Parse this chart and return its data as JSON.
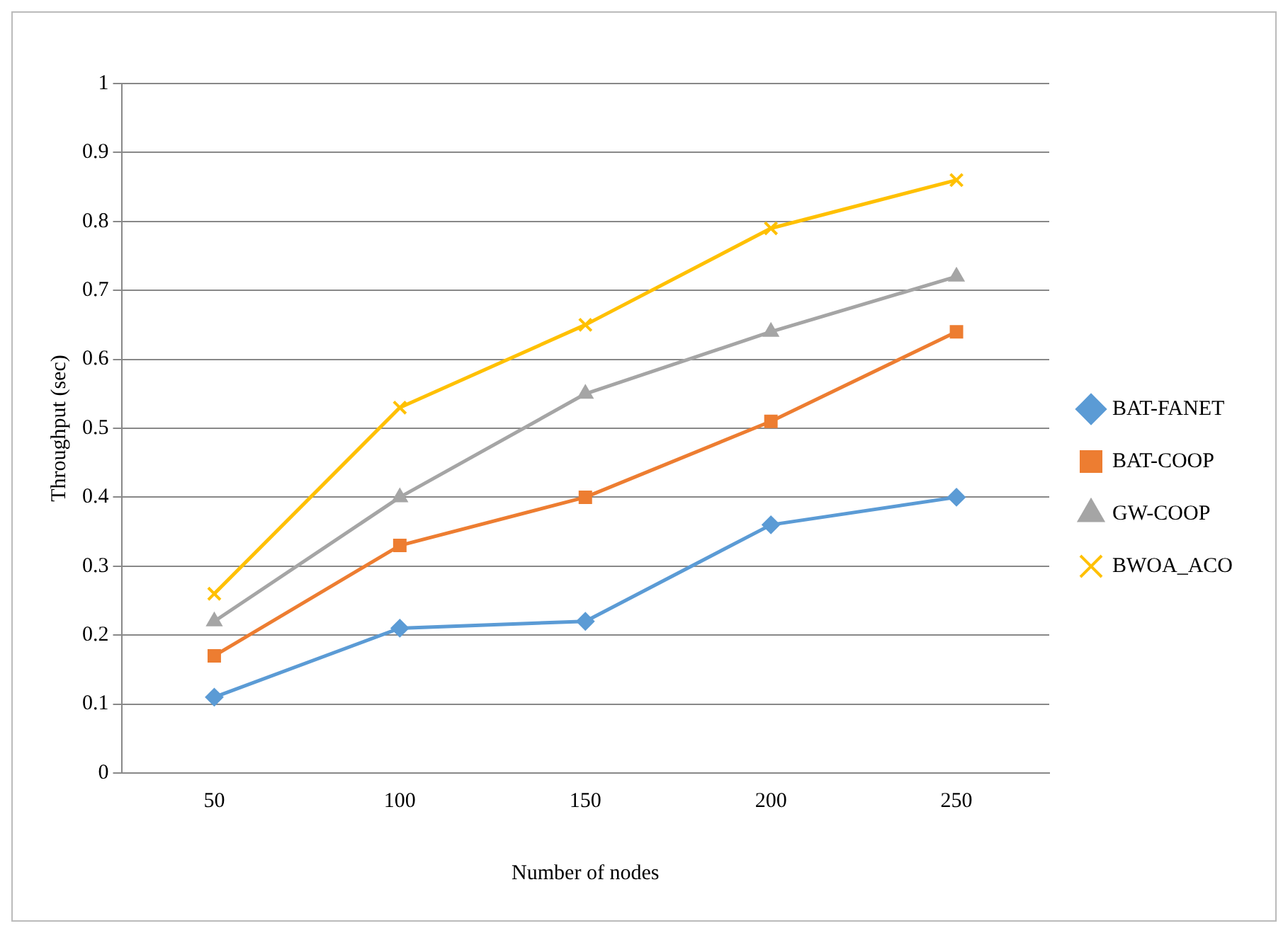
{
  "chart_data": {
    "type": "line",
    "xlabel": "Number of nodes",
    "ylabel": "Throughput (sec)",
    "categories": [
      "50",
      "100",
      "150",
      "200",
      "250"
    ],
    "series": [
      {
        "name": "BAT-FANET",
        "color": "#5b9bd5",
        "marker": "diamond",
        "values": [
          0.11,
          0.21,
          0.22,
          0.36,
          0.4
        ]
      },
      {
        "name": "BAT-COOP",
        "color": "#ed7d31",
        "marker": "square",
        "values": [
          0.17,
          0.33,
          0.4,
          0.51,
          0.64
        ]
      },
      {
        "name": "GW-COOP",
        "color": "#a5a5a5",
        "marker": "triangle",
        "values": [
          0.22,
          0.4,
          0.55,
          0.64,
          0.72
        ]
      },
      {
        "name": "BWOA_ACO",
        "color": "#ffc000",
        "marker": "cross",
        "values": [
          0.26,
          0.53,
          0.65,
          0.79,
          0.86
        ]
      }
    ],
    "ylim": [
      0,
      1
    ],
    "yticks": [
      0,
      0.1,
      0.2,
      0.3,
      0.4,
      0.5,
      0.6,
      0.7,
      0.8,
      0.9,
      1
    ],
    "grid": "y",
    "legend": "right"
  }
}
